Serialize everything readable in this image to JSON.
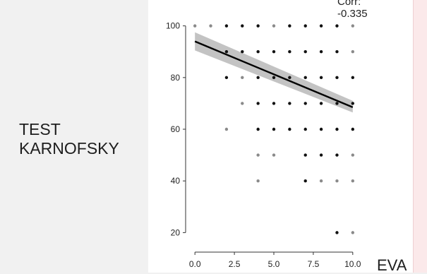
{
  "chart_data": {
    "type": "scatter",
    "ylabel_lines": [
      "TEST",
      "KARNOFSKY"
    ],
    "xlabel": "EVA",
    "annotation_lines": [
      "Corr:",
      "-0.335"
    ],
    "xlim": [
      -0.5,
      10.5
    ],
    "ylim": [
      13,
      104
    ],
    "x_ticks": [
      0.0,
      2.5,
      5.0,
      7.5,
      10.0
    ],
    "x_tick_labels": [
      "0.0",
      "2.5",
      "5.0",
      "7.5",
      "10.0"
    ],
    "y_ticks": [
      20,
      40,
      60,
      80,
      100
    ],
    "y_tick_labels": [
      "20",
      "40",
      "60",
      "80",
      "100"
    ],
    "points": [
      {
        "x": 0,
        "y": 100,
        "shade": "light"
      },
      {
        "x": 1,
        "y": 100,
        "shade": "light"
      },
      {
        "x": 2,
        "y": 100,
        "shade": "dark"
      },
      {
        "x": 3,
        "y": 100,
        "shade": "dark"
      },
      {
        "x": 4,
        "y": 100,
        "shade": "dark"
      },
      {
        "x": 5,
        "y": 100,
        "shade": "light"
      },
      {
        "x": 6,
        "y": 100,
        "shade": "dark"
      },
      {
        "x": 7,
        "y": 100,
        "shade": "dark"
      },
      {
        "x": 8,
        "y": 100,
        "shade": "dark"
      },
      {
        "x": 9,
        "y": 100,
        "shade": "dark"
      },
      {
        "x": 10,
        "y": 100,
        "shade": "light"
      },
      {
        "x": 2,
        "y": 90,
        "shade": "dark"
      },
      {
        "x": 3,
        "y": 90,
        "shade": "dark"
      },
      {
        "x": 4,
        "y": 90,
        "shade": "dark"
      },
      {
        "x": 5,
        "y": 90,
        "shade": "dark"
      },
      {
        "x": 6,
        "y": 90,
        "shade": "dark"
      },
      {
        "x": 7,
        "y": 90,
        "shade": "dark"
      },
      {
        "x": 8,
        "y": 90,
        "shade": "dark"
      },
      {
        "x": 9,
        "y": 90,
        "shade": "dark"
      },
      {
        "x": 10,
        "y": 90,
        "shade": "light"
      },
      {
        "x": 2,
        "y": 80,
        "shade": "dark"
      },
      {
        "x": 3,
        "y": 80,
        "shade": "light"
      },
      {
        "x": 4,
        "y": 80,
        "shade": "dark"
      },
      {
        "x": 5,
        "y": 80,
        "shade": "dark"
      },
      {
        "x": 6,
        "y": 80,
        "shade": "dark"
      },
      {
        "x": 7,
        "y": 80,
        "shade": "dark"
      },
      {
        "x": 8,
        "y": 80,
        "shade": "dark"
      },
      {
        "x": 9,
        "y": 80,
        "shade": "dark"
      },
      {
        "x": 10,
        "y": 80,
        "shade": "dark"
      },
      {
        "x": 3,
        "y": 70,
        "shade": "light"
      },
      {
        "x": 4,
        "y": 70,
        "shade": "dark"
      },
      {
        "x": 5,
        "y": 70,
        "shade": "dark"
      },
      {
        "x": 6,
        "y": 70,
        "shade": "dark"
      },
      {
        "x": 7,
        "y": 70,
        "shade": "dark"
      },
      {
        "x": 8,
        "y": 70,
        "shade": "dark"
      },
      {
        "x": 9,
        "y": 70,
        "shade": "dark"
      },
      {
        "x": 10,
        "y": 70,
        "shade": "dark"
      },
      {
        "x": 2,
        "y": 60,
        "shade": "light"
      },
      {
        "x": 4,
        "y": 60,
        "shade": "dark"
      },
      {
        "x": 5,
        "y": 60,
        "shade": "dark"
      },
      {
        "x": 6,
        "y": 60,
        "shade": "dark"
      },
      {
        "x": 7,
        "y": 60,
        "shade": "dark"
      },
      {
        "x": 8,
        "y": 60,
        "shade": "dark"
      },
      {
        "x": 9,
        "y": 60,
        "shade": "dark"
      },
      {
        "x": 10,
        "y": 60,
        "shade": "dark"
      },
      {
        "x": 4,
        "y": 50,
        "shade": "light"
      },
      {
        "x": 5,
        "y": 50,
        "shade": "light"
      },
      {
        "x": 7,
        "y": 50,
        "shade": "dark"
      },
      {
        "x": 8,
        "y": 50,
        "shade": "dark"
      },
      {
        "x": 9,
        "y": 50,
        "shade": "dark"
      },
      {
        "x": 10,
        "y": 50,
        "shade": "light"
      },
      {
        "x": 4,
        "y": 40,
        "shade": "light"
      },
      {
        "x": 7,
        "y": 40,
        "shade": "dark"
      },
      {
        "x": 8,
        "y": 40,
        "shade": "light"
      },
      {
        "x": 9,
        "y": 40,
        "shade": "light"
      },
      {
        "x": 10,
        "y": 40,
        "shade": "light"
      },
      {
        "x": 9,
        "y": 20,
        "shade": "dark"
      },
      {
        "x": 10,
        "y": 20,
        "shade": "light"
      }
    ],
    "regression": {
      "x": [
        0,
        10
      ],
      "y": [
        94,
        68.5
      ],
      "ci_lower": [
        90.5,
        66.5
      ],
      "ci_upper": [
        97.5,
        71
      ]
    },
    "colors": {
      "dark_point": "#111111",
      "light_point": "#8a8a8a",
      "line": "#000000",
      "band": "#b9b9b9"
    }
  }
}
